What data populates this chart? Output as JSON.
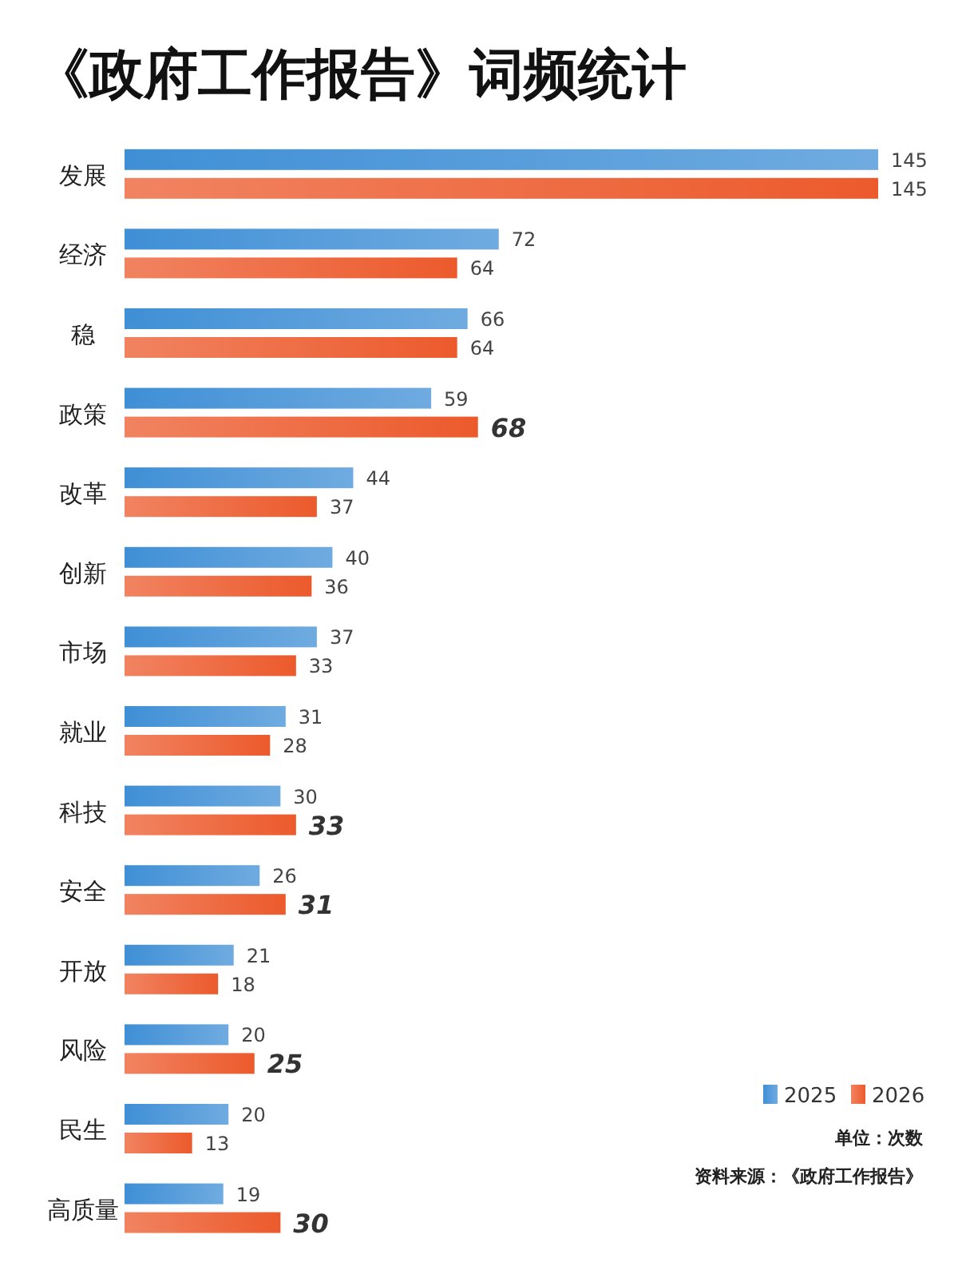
{
  "chart_data": {
    "type": "bar",
    "orientation": "horizontal",
    "title": "《政府工作报告》词频统计",
    "categories": [
      "发展",
      "经济",
      "稳",
      "政策",
      "改革",
      "创新",
      "市场",
      "就业",
      "科技",
      "安全",
      "开放",
      "风险",
      "民生",
      "高质量"
    ],
    "series": [
      {
        "name": "2025",
        "color": "#3f8fd6",
        "values": [
          145,
          72,
          66,
          59,
          44,
          40,
          37,
          31,
          30,
          26,
          21,
          20,
          20,
          19
        ]
      },
      {
        "name": "2026",
        "color": "#ec5a2c",
        "values": [
          145,
          64,
          64,
          68,
          37,
          36,
          33,
          28,
          33,
          31,
          18,
          25,
          13,
          30
        ]
      }
    ],
    "data_labels": true,
    "legend": "bottom right",
    "annotations": [
      "单位：次数",
      "资料来源：《政府工作报告》"
    ]
  }
}
